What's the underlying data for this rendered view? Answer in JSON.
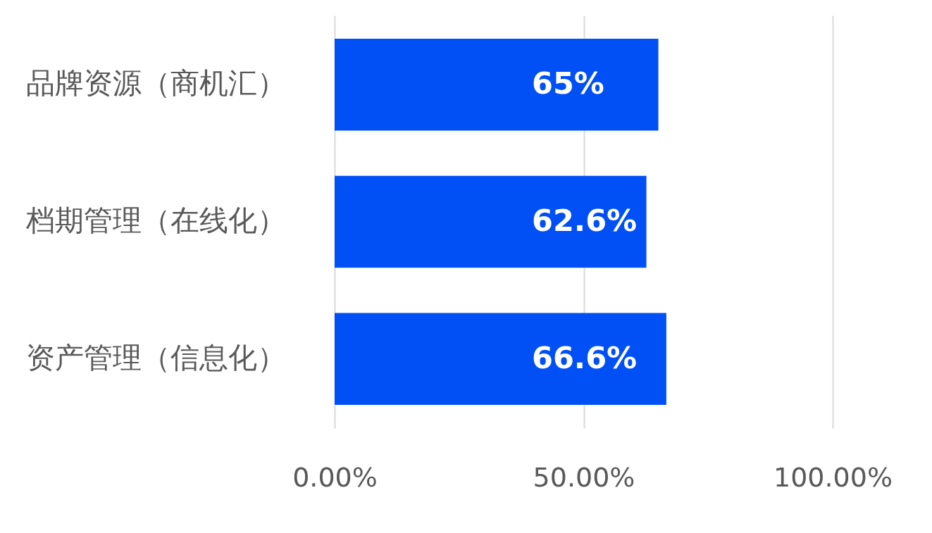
{
  "chart_data": {
    "type": "bar",
    "orientation": "horizontal",
    "categories": [
      "品牌资源（商机汇）",
      "档期管理（在线化）",
      "资产管理（信息化）"
    ],
    "values": [
      65,
      62.6,
      66.6
    ],
    "color": "#0050f5",
    "value_labels": [
      "65%",
      "62.6%",
      "66.6%"
    ],
    "xlim": [
      0,
      100
    ],
    "xticks": [
      {
        "value": 0,
        "label": "0.00%"
      },
      {
        "value": 50,
        "label": "50.00%"
      },
      {
        "value": 100,
        "label": "100.00%"
      }
    ],
    "grid": "x"
  }
}
